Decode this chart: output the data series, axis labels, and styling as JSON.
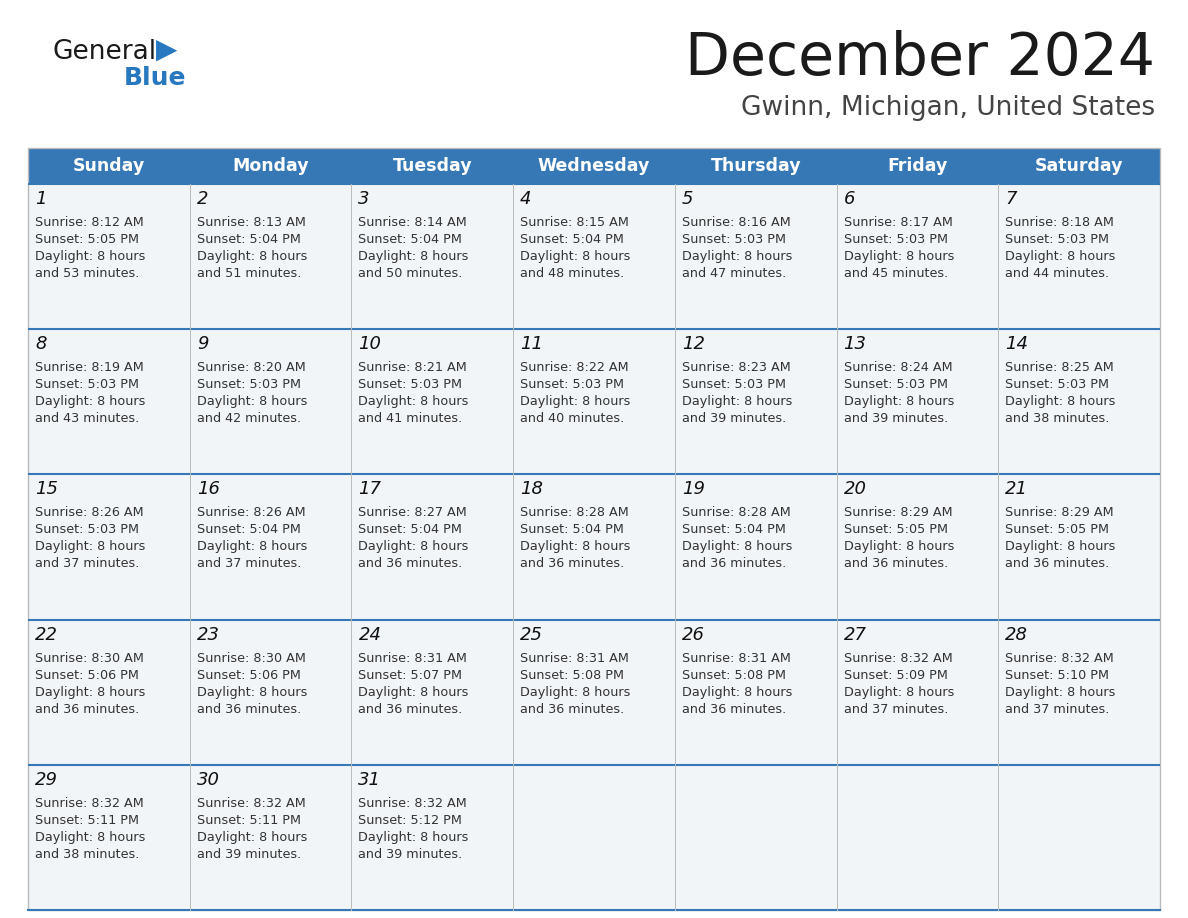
{
  "title": "December 2024",
  "subtitle": "Gwinn, Michigan, United States",
  "header_color": "#3578b5",
  "header_text_color": "#ffffff",
  "day_names": [
    "Sunday",
    "Monday",
    "Tuesday",
    "Wednesday",
    "Thursday",
    "Friday",
    "Saturday"
  ],
  "title_color": "#1a1a1a",
  "subtitle_color": "#444444",
  "cell_bg_color": "#f2f5f8",
  "divider_color": "#3578b5",
  "day_number_color": "#111111",
  "cell_text_color": "#333333",
  "logo_general_color": "#1a1a1a",
  "logo_blue_color": "#2878c0",
  "border_color": "#bbbbbb",
  "calendar": [
    [
      {
        "day": 1,
        "sunrise": "8:12 AM",
        "sunset": "5:05 PM",
        "daylight_minutes": "53"
      },
      {
        "day": 2,
        "sunrise": "8:13 AM",
        "sunset": "5:04 PM",
        "daylight_minutes": "51"
      },
      {
        "day": 3,
        "sunrise": "8:14 AM",
        "sunset": "5:04 PM",
        "daylight_minutes": "50"
      },
      {
        "day": 4,
        "sunrise": "8:15 AM",
        "sunset": "5:04 PM",
        "daylight_minutes": "48"
      },
      {
        "day": 5,
        "sunrise": "8:16 AM",
        "sunset": "5:03 PM",
        "daylight_minutes": "47"
      },
      {
        "day": 6,
        "sunrise": "8:17 AM",
        "sunset": "5:03 PM",
        "daylight_minutes": "45"
      },
      {
        "day": 7,
        "sunrise": "8:18 AM",
        "sunset": "5:03 PM",
        "daylight_minutes": "44"
      }
    ],
    [
      {
        "day": 8,
        "sunrise": "8:19 AM",
        "sunset": "5:03 PM",
        "daylight_minutes": "43"
      },
      {
        "day": 9,
        "sunrise": "8:20 AM",
        "sunset": "5:03 PM",
        "daylight_minutes": "42"
      },
      {
        "day": 10,
        "sunrise": "8:21 AM",
        "sunset": "5:03 PM",
        "daylight_minutes": "41"
      },
      {
        "day": 11,
        "sunrise": "8:22 AM",
        "sunset": "5:03 PM",
        "daylight_minutes": "40"
      },
      {
        "day": 12,
        "sunrise": "8:23 AM",
        "sunset": "5:03 PM",
        "daylight_minutes": "39"
      },
      {
        "day": 13,
        "sunrise": "8:24 AM",
        "sunset": "5:03 PM",
        "daylight_minutes": "39"
      },
      {
        "day": 14,
        "sunrise": "8:25 AM",
        "sunset": "5:03 PM",
        "daylight_minutes": "38"
      }
    ],
    [
      {
        "day": 15,
        "sunrise": "8:26 AM",
        "sunset": "5:03 PM",
        "daylight_minutes": "37"
      },
      {
        "day": 16,
        "sunrise": "8:26 AM",
        "sunset": "5:04 PM",
        "daylight_minutes": "37"
      },
      {
        "day": 17,
        "sunrise": "8:27 AM",
        "sunset": "5:04 PM",
        "daylight_minutes": "36"
      },
      {
        "day": 18,
        "sunrise": "8:28 AM",
        "sunset": "5:04 PM",
        "daylight_minutes": "36"
      },
      {
        "day": 19,
        "sunrise": "8:28 AM",
        "sunset": "5:04 PM",
        "daylight_minutes": "36"
      },
      {
        "day": 20,
        "sunrise": "8:29 AM",
        "sunset": "5:05 PM",
        "daylight_minutes": "36"
      },
      {
        "day": 21,
        "sunrise": "8:29 AM",
        "sunset": "5:05 PM",
        "daylight_minutes": "36"
      }
    ],
    [
      {
        "day": 22,
        "sunrise": "8:30 AM",
        "sunset": "5:06 PM",
        "daylight_minutes": "36"
      },
      {
        "day": 23,
        "sunrise": "8:30 AM",
        "sunset": "5:06 PM",
        "daylight_minutes": "36"
      },
      {
        "day": 24,
        "sunrise": "8:31 AM",
        "sunset": "5:07 PM",
        "daylight_minutes": "36"
      },
      {
        "day": 25,
        "sunrise": "8:31 AM",
        "sunset": "5:08 PM",
        "daylight_minutes": "36"
      },
      {
        "day": 26,
        "sunrise": "8:31 AM",
        "sunset": "5:08 PM",
        "daylight_minutes": "36"
      },
      {
        "day": 27,
        "sunrise": "8:32 AM",
        "sunset": "5:09 PM",
        "daylight_minutes": "37"
      },
      {
        "day": 28,
        "sunrise": "8:32 AM",
        "sunset": "5:10 PM",
        "daylight_minutes": "37"
      }
    ],
    [
      {
        "day": 29,
        "sunrise": "8:32 AM",
        "sunset": "5:11 PM",
        "daylight_minutes": "38"
      },
      {
        "day": 30,
        "sunrise": "8:32 AM",
        "sunset": "5:11 PM",
        "daylight_minutes": "39"
      },
      {
        "day": 31,
        "sunrise": "8:32 AM",
        "sunset": "5:12 PM",
        "daylight_minutes": "39"
      },
      null,
      null,
      null,
      null
    ]
  ]
}
